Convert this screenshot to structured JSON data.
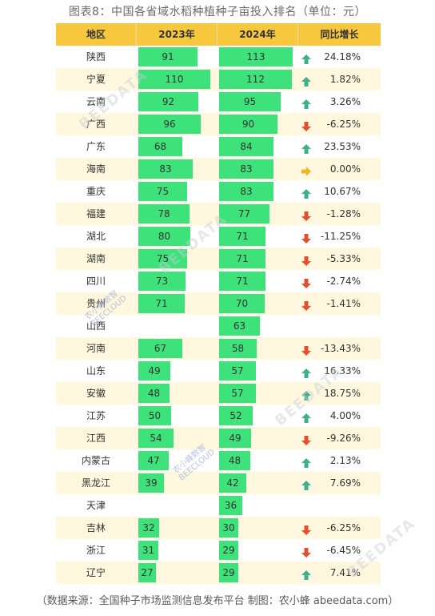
{
  "chart_data": {
    "type": "table",
    "title": "图表8：中国各省域水稻种植种子亩投入排名（单位：元）",
    "columns": [
      "地区",
      "2023年",
      "2024年",
      "同比增长"
    ],
    "rows": [
      {
        "region": "陕西",
        "y2023": 91,
        "y2024": 113,
        "change": "24.18%",
        "dir": "up"
      },
      {
        "region": "宁夏",
        "y2023": 110,
        "y2024": 112,
        "change": "1.82%",
        "dir": "up"
      },
      {
        "region": "云南",
        "y2023": 92,
        "y2024": 95,
        "change": "3.26%",
        "dir": "up"
      },
      {
        "region": "广西",
        "y2023": 96,
        "y2024": 90,
        "change": "-6.25%",
        "dir": "down"
      },
      {
        "region": "广东",
        "y2023": 68,
        "y2024": 84,
        "change": "23.53%",
        "dir": "up"
      },
      {
        "region": "海南",
        "y2023": 83,
        "y2024": 83,
        "change": "0.00%",
        "dir": "flat"
      },
      {
        "region": "重庆",
        "y2023": 75,
        "y2024": 83,
        "change": "10.67%",
        "dir": "up"
      },
      {
        "region": "福建",
        "y2023": 78,
        "y2024": 77,
        "change": "-1.28%",
        "dir": "down"
      },
      {
        "region": "湖北",
        "y2023": 80,
        "y2024": 71,
        "change": "-11.25%",
        "dir": "down"
      },
      {
        "region": "湖南",
        "y2023": 75,
        "y2024": 71,
        "change": "-5.33%",
        "dir": "down"
      },
      {
        "region": "四川",
        "y2023": 73,
        "y2024": 71,
        "change": "-2.74%",
        "dir": "down"
      },
      {
        "region": "贵州",
        "y2023": 71,
        "y2024": 70,
        "change": "-1.41%",
        "dir": "down"
      },
      {
        "region": "山西",
        "y2023": null,
        "y2024": 63,
        "change": "",
        "dir": "none"
      },
      {
        "region": "河南",
        "y2023": 67,
        "y2024": 58,
        "change": "-13.43%",
        "dir": "down"
      },
      {
        "region": "山东",
        "y2023": 49,
        "y2024": 57,
        "change": "16.33%",
        "dir": "up"
      },
      {
        "region": "安徽",
        "y2023": 48,
        "y2024": 57,
        "change": "18.75%",
        "dir": "up"
      },
      {
        "region": "江苏",
        "y2023": 50,
        "y2024": 52,
        "change": "4.00%",
        "dir": "up"
      },
      {
        "region": "江西",
        "y2023": 54,
        "y2024": 49,
        "change": "-9.26%",
        "dir": "down"
      },
      {
        "region": "内蒙古",
        "y2023": 47,
        "y2024": 48,
        "change": "2.13%",
        "dir": "up"
      },
      {
        "region": "黑龙江",
        "y2023": 39,
        "y2024": 42,
        "change": "7.69%",
        "dir": "up"
      },
      {
        "region": "天津",
        "y2023": null,
        "y2024": 36,
        "change": "",
        "dir": "none"
      },
      {
        "region": "吉林",
        "y2023": 32,
        "y2024": 30,
        "change": "-6.25%",
        "dir": "down"
      },
      {
        "region": "浙江",
        "y2023": 31,
        "y2024": 29,
        "change": "-6.45%",
        "dir": "down"
      },
      {
        "region": "辽宁",
        "y2023": 27,
        "y2024": 29,
        "change": "7.41%",
        "dir": "up"
      }
    ],
    "bar_max": 113,
    "colors": {
      "bar": "#3ee27a",
      "header": "#f7c83d",
      "row_alt": "#fff8df",
      "arrow_up": "#3fae8a",
      "arrow_down": "#e0502e",
      "arrow_flat": "#f0b429"
    }
  },
  "footer": {
    "source": "（数据来源：全国种子市场监测信息发布平台    制图：农小蜂 abeedata.com）"
  },
  "watermarks": [
    "BEEDATA",
    "农小蜂数智",
    "BEECLOUD"
  ]
}
